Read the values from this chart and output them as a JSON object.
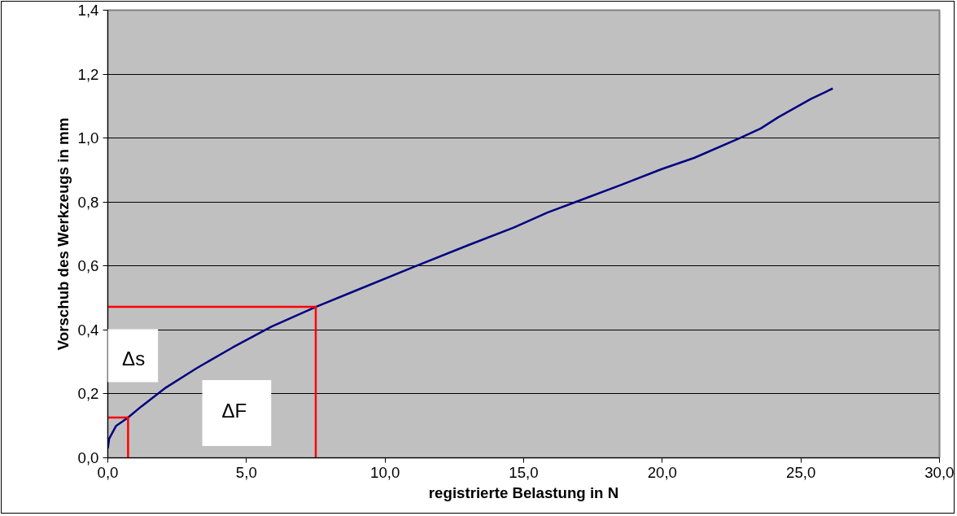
{
  "chart_data": {
    "type": "line",
    "xlabel": "registrierte Belastung in N",
    "ylabel": "Vorschub des Werkzeugs in mm",
    "xlim": [
      0,
      30
    ],
    "ylim": [
      0,
      1.4
    ],
    "xticks": [
      {
        "value": 0,
        "label": "0,0"
      },
      {
        "value": 5,
        "label": "5,0"
      },
      {
        "value": 10,
        "label": "10,0"
      },
      {
        "value": 15,
        "label": "15,0"
      },
      {
        "value": 20,
        "label": "20,0"
      },
      {
        "value": 25,
        "label": "25,0"
      },
      {
        "value": 30,
        "label": "30,0"
      }
    ],
    "yticks": [
      {
        "value": 0,
        "label": "0,0"
      },
      {
        "value": 0.2,
        "label": "0,2"
      },
      {
        "value": 0.4,
        "label": "0,4"
      },
      {
        "value": 0.6,
        "label": "0,6"
      },
      {
        "value": 0.8,
        "label": "0,8"
      },
      {
        "value": 1.0,
        "label": "1,0"
      },
      {
        "value": 1.2,
        "label": "1,2"
      },
      {
        "value": 1.4,
        "label": "1,4"
      }
    ],
    "grid": "y",
    "marker": "none",
    "line_style": "solid",
    "series": [
      {
        "color": "#000080",
        "x": [
          0,
          0.05,
          0.3,
          0.73,
          1.2,
          2.1,
          3.2,
          4.5,
          5.9,
          7.5,
          9,
          11.06,
          13,
          14.64,
          15.86,
          16.87,
          18.5,
          19.98,
          21.15,
          22.8,
          23.55,
          24.18,
          25.37,
          26.15
        ],
        "values": [
          0.03,
          0.06,
          0.1,
          0.126,
          0.16,
          0.22,
          0.28,
          0.345,
          0.41,
          0.472,
          0.525,
          0.598,
          0.665,
          0.72,
          0.767,
          0.8,
          0.853,
          0.903,
          0.938,
          1.0,
          1.03,
          1.065,
          1.123,
          1.155
        ]
      },
      {
        "color": "#ff0000",
        "x": [
          0,
          7.5,
          7.5
        ],
        "values": [
          0.472,
          0.472,
          0
        ]
      },
      {
        "color": "#ff0000",
        "x": [
          0,
          0.73,
          0.73
        ],
        "values": [
          0.126,
          0.126,
          0
        ]
      }
    ],
    "annotations": [
      "Δs",
      "ΔF"
    ]
  }
}
